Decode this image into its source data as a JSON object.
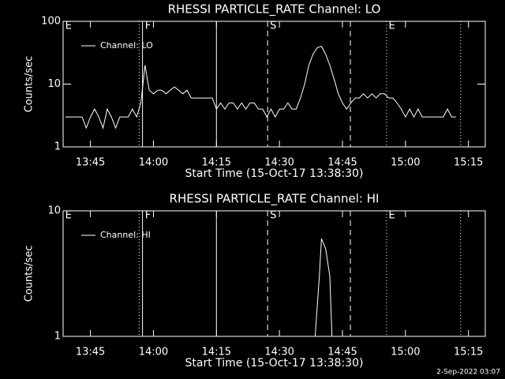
{
  "chart_data": [
    {
      "type": "line",
      "title": "RHESSI PARTICLE_RATE Channel: LO",
      "ylabel": "Counts/sec",
      "xlabel": "Start Time (15-Oct-17 13:38:30)",
      "log_y": true,
      "ylim": [
        1,
        100
      ],
      "yticks": [
        1,
        10,
        100
      ],
      "xlim": [
        "13:38:30",
        "15:19:00"
      ],
      "xticks": [
        "13:45",
        "14:00",
        "14:15",
        "14:30",
        "14:45",
        "15:00",
        "15:15"
      ],
      "x": [
        "13:39",
        "13:40",
        "13:41",
        "13:42",
        "13:43",
        "13:44",
        "13:45",
        "13:46",
        "13:47",
        "13:48",
        "13:49",
        "13:50",
        "13:51",
        "13:52",
        "13:53",
        "13:54",
        "13:55",
        "13:56",
        "13:57",
        "13:58",
        "13:59",
        "14:00",
        "14:01",
        "14:02",
        "14:03",
        "14:04",
        "14:05",
        "14:06",
        "14:07",
        "14:08",
        "14:09",
        "14:10",
        "14:11",
        "14:12",
        "14:13",
        "14:14",
        "14:15",
        "14:16",
        "14:17",
        "14:18",
        "14:19",
        "14:20",
        "14:21",
        "14:22",
        "14:23",
        "14:24",
        "14:25",
        "14:26",
        "14:27",
        "14:28",
        "14:29",
        "14:30",
        "14:31",
        "14:32",
        "14:33",
        "14:34",
        "14:35",
        "14:36",
        "14:37",
        "14:38",
        "14:39",
        "14:40",
        "14:41",
        "14:42",
        "14:43",
        "14:44",
        "14:45",
        "14:46",
        "14:47",
        "14:48",
        "14:49",
        "14:50",
        "14:51",
        "14:52",
        "14:53",
        "14:54",
        "14:55",
        "14:56",
        "14:57",
        "14:58",
        "14:59",
        "15:00",
        "15:01",
        "15:02",
        "15:03",
        "15:04",
        "15:05",
        "15:06",
        "15:07",
        "15:08",
        "15:09",
        "15:10",
        "15:11",
        "15:12"
      ],
      "series": [
        {
          "name": "Channel: LO",
          "color": "#ffffff",
          "values": [
            3,
            3,
            3,
            3,
            3,
            2,
            3,
            4,
            3,
            2,
            4,
            3,
            2,
            3,
            3,
            3,
            4,
            3,
            5,
            20,
            8,
            7,
            8,
            8,
            7,
            8,
            9,
            8,
            7,
            8,
            6,
            6,
            6,
            6,
            6,
            6,
            4,
            5,
            4,
            5,
            5,
            4,
            5,
            4,
            5,
            5,
            4,
            4,
            3,
            4,
            3,
            4,
            4,
            5,
            4,
            4,
            6,
            10,
            20,
            30,
            38,
            40,
            30,
            20,
            12,
            7,
            5,
            4,
            5,
            6,
            6,
            7,
            6,
            7,
            6,
            7,
            7,
            6,
            6,
            5,
            4,
            3,
            4,
            3,
            4,
            3,
            3,
            3,
            3,
            3,
            3,
            4,
            3,
            3
          ]
        }
      ],
      "vlines": [
        {
          "x": "13:56:36",
          "style": "dotted"
        },
        {
          "x": "13:57:24",
          "style": "solid"
        },
        {
          "x": "14:15:00",
          "style": "solid"
        },
        {
          "x": "14:27:11",
          "style": "dashed"
        },
        {
          "x": "14:46:53",
          "style": "dashed"
        },
        {
          "x": "14:55:30",
          "style": "dotted"
        },
        {
          "x": "15:13:08",
          "style": "dotted"
        }
      ],
      "flags": [
        {
          "x": "13:39",
          "label": "E"
        },
        {
          "x": "13:58",
          "label": "F"
        },
        {
          "x": "14:27:45",
          "label": "S"
        },
        {
          "x": "14:56",
          "label": "E"
        }
      ]
    },
    {
      "type": "line",
      "title": "RHESSI PARTICLE_RATE Channel: HI",
      "ylabel": "Counts/sec",
      "xlabel": "Start Time (15-Oct-17 13:38:30)",
      "log_y": true,
      "ylim": [
        1,
        10
      ],
      "yticks": [
        1,
        10
      ],
      "xlim": [
        "13:38:30",
        "15:19:00"
      ],
      "xticks": [
        "13:45",
        "14:00",
        "14:15",
        "14:30",
        "14:45",
        "15:00",
        "15:15"
      ],
      "x": [
        "14:38:30",
        "14:39:30",
        "14:40",
        "14:41",
        "14:42",
        "14:42:30"
      ],
      "series": [
        {
          "name": "Channel: HI",
          "color": "#ffffff",
          "values": [
            1,
            3,
            6,
            5,
            3,
            1
          ]
        }
      ],
      "vlines": [
        {
          "x": "13:56:36",
          "style": "dotted"
        },
        {
          "x": "13:57:24",
          "style": "solid"
        },
        {
          "x": "14:15:00",
          "style": "solid"
        },
        {
          "x": "14:27:11",
          "style": "dashed"
        },
        {
          "x": "14:46:53",
          "style": "dashed"
        },
        {
          "x": "14:55:30",
          "style": "dotted"
        },
        {
          "x": "15:13:08",
          "style": "dotted"
        }
      ],
      "flags": [
        {
          "x": "13:39",
          "label": "E"
        },
        {
          "x": "13:58",
          "label": "F"
        },
        {
          "x": "14:27:45",
          "label": "S"
        },
        {
          "x": "14:56",
          "label": "E"
        }
      ]
    }
  ],
  "footer": "2-Sep-2022 03:07"
}
